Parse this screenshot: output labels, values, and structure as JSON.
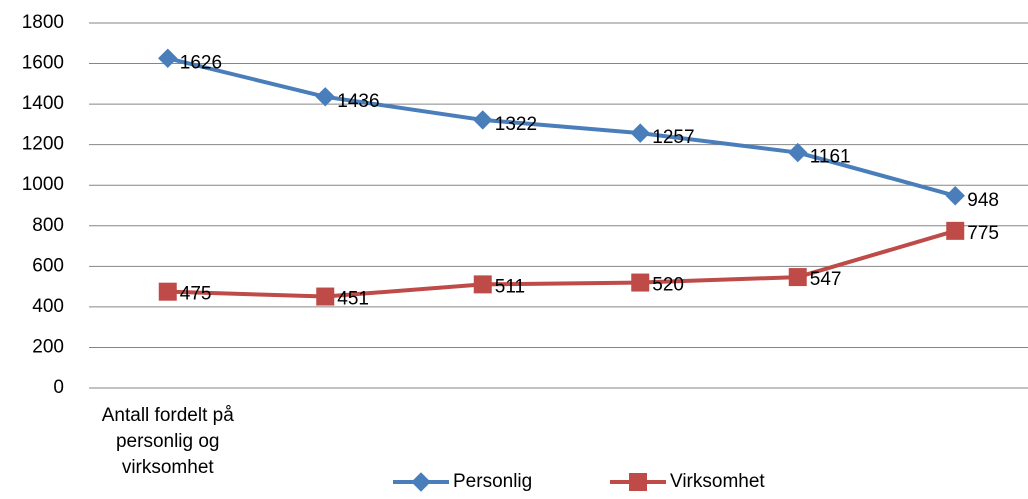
{
  "chart_data": {
    "type": "line",
    "categories": [
      "Antall fordelt på personlig og virksomhet",
      null,
      null,
      null,
      null,
      null
    ],
    "series": [
      {
        "name": "Personlig",
        "color": "#4a7ebb",
        "marker": "diamond",
        "values": [
          1626,
          1436,
          1322,
          1257,
          1161,
          948
        ]
      },
      {
        "name": "Virksomhet",
        "color": "#be4b48",
        "marker": "square",
        "values": [
          475,
          451,
          511,
          520,
          547,
          775
        ]
      }
    ],
    "ylim": [
      0,
      1800
    ],
    "yticks": [
      0,
      200,
      400,
      600,
      800,
      1000,
      1200,
      1400,
      1600,
      1800
    ],
    "grid": true,
    "legend": "bottom"
  }
}
